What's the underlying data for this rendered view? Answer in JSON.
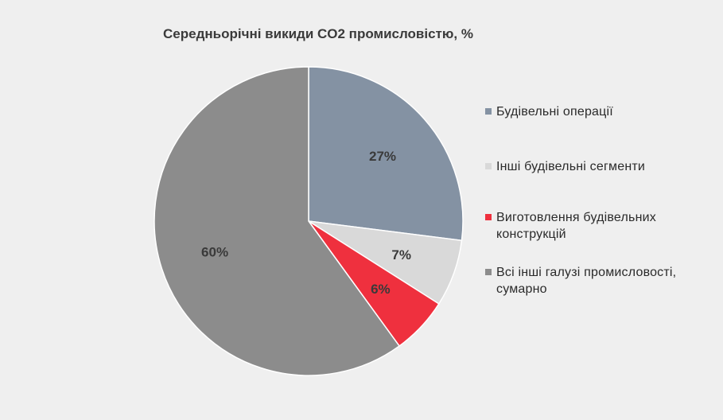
{
  "chart_data": {
    "type": "pie",
    "title": "Середньорічні викиди CO2 промисловістю, %",
    "unit": "%",
    "slices": [
      {
        "name": "Будівельні операції",
        "value": 27,
        "label": "27%",
        "color": "#8492a3"
      },
      {
        "name": "Інші будівельні сегменти",
        "value": 7,
        "label": "7%",
        "color": "#d9d9d9"
      },
      {
        "name": "Виготовлення будівельних конструкцій",
        "value": 6,
        "label": "6%",
        "color": "#ef303e"
      },
      {
        "name": "Всі інші галузі промисловості, сумарно",
        "value": 60,
        "label": "60%",
        "color": "#8c8c8c"
      }
    ],
    "legend_position": "right"
  }
}
